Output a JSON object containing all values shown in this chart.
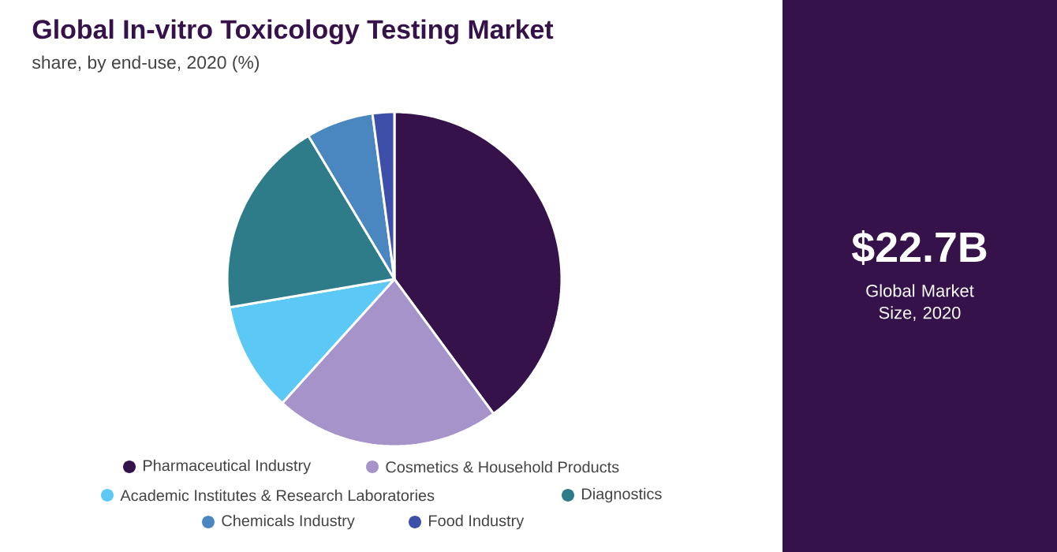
{
  "chart_data": {
    "type": "pie",
    "title": "Global In-vitro Toxicology Testing Market",
    "subtitle": "share, by end-use, 2020 (%)",
    "categories": [
      "Pharmaceutical Industry",
      "Cosmetics & Household Products",
      "Academic Institutes & Research Laboratories",
      "Diagnostics",
      "Chemicals Industry",
      "Food Industry"
    ],
    "values": [
      39.9,
      21.8,
      10.6,
      19.1,
      6.5,
      2.1
    ],
    "colors": [
      "#35134a",
      "#a593c9",
      "#5bc8f5",
      "#2e7b8a",
      "#4a86c0",
      "#3d4fa8"
    ],
    "legend": "bottom",
    "annotations": [
      "$22.7B",
      "Global Market Size, 2020"
    ]
  }
}
